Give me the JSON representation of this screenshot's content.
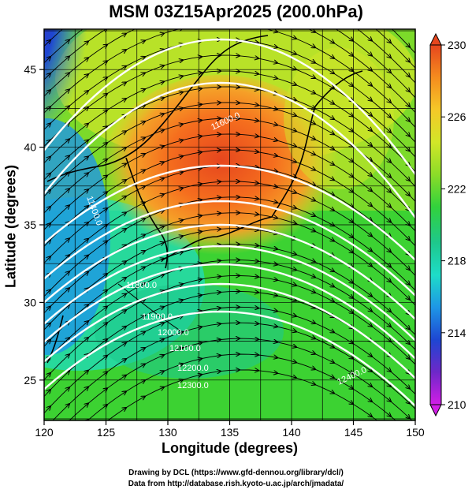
{
  "title": "MSM 03Z15Apr2025 (200.0hPa)",
  "x_axis": {
    "label": "Longitude (degrees)",
    "ticks": [
      120,
      125,
      130,
      135,
      140,
      145,
      150
    ]
  },
  "y_axis": {
    "label": "Latitude  (degrees)",
    "ticks": [
      25,
      30,
      35,
      40,
      45
    ]
  },
  "colorbar": {
    "ticks": [
      210,
      214,
      218,
      222,
      226,
      230
    ],
    "min": 210,
    "max": 230,
    "colors": [
      "#d21ee6",
      "#6e28c8",
      "#1e46d2",
      "#1e96e6",
      "#1edcc8",
      "#1ec88c",
      "#32d23c",
      "#8cdc28",
      "#d2e628",
      "#f5c828",
      "#f58c1e",
      "#e6461e"
    ]
  },
  "contour_labels": [
    "11400.0",
    "11600.0",
    "11800.0",
    "11900.0",
    "12000.0",
    "12100.0",
    "12200.0",
    "12300.0",
    "12400.0"
  ],
  "credits": [
    "Drawing by DCL (https://www.gfd-dennou.org/library/dcl/)",
    "Data from http://database.rish.kyoto-u.ac.jp/arch/jmadata/"
  ],
  "chart_data": {
    "type": "heatmap",
    "title": "MSM 03Z15Apr2025 (200.0hPa)",
    "xlabel": "Longitude (degrees)",
    "ylabel": "Latitude  (degrees)",
    "xlim": [
      120,
      150
    ],
    "ylim": [
      22.4,
      47.6
    ],
    "color_range": [
      210,
      230
    ],
    "overlays": [
      "wind streamlines (black arrows)",
      "geopotential height contours (white)",
      "coastlines (black)"
    ]
  }
}
